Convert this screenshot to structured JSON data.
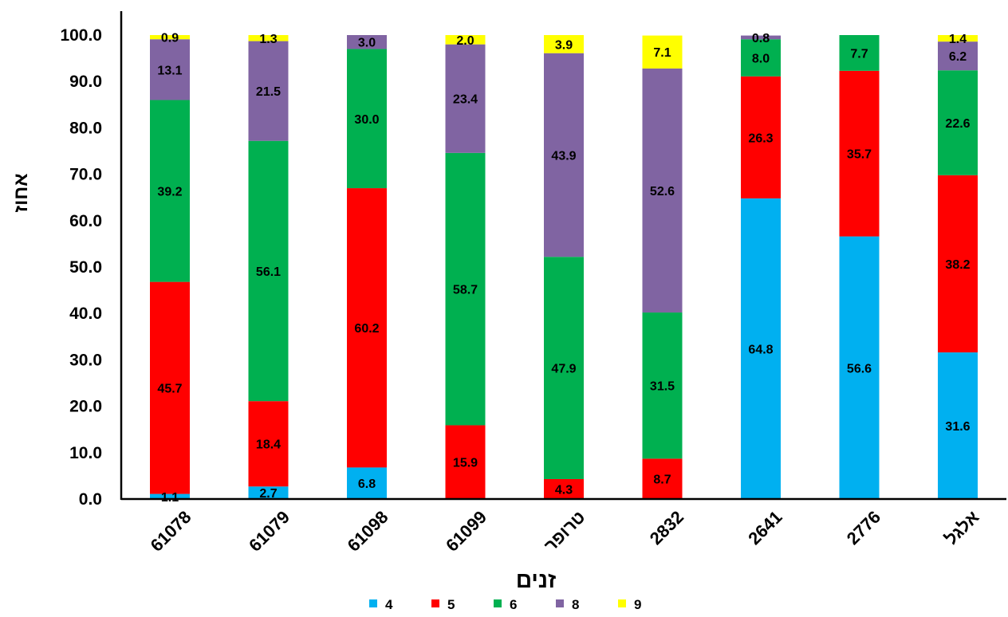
{
  "chart_data": {
    "type": "bar",
    "stacked": true,
    "title": "",
    "xlabel": "זנים",
    "ylabel": "אחוז",
    "ylim": [
      0,
      100
    ],
    "yticks": [
      "0.0",
      "10.0",
      "20.0",
      "30.0",
      "40.0",
      "50.0",
      "60.0",
      "70.0",
      "80.0",
      "90.0",
      "100.0"
    ],
    "grid": false,
    "legend_position": "bottom",
    "categories": [
      "61078",
      "61079",
      "61098",
      "61099",
      "טרופר",
      "2832",
      "2641",
      "2776",
      "אלגל"
    ],
    "series": [
      {
        "name": "4",
        "color": "#00B0F0",
        "values": [
          1.1,
          2.7,
          6.8,
          0,
          0,
          0,
          64.8,
          56.6,
          31.6
        ],
        "labels": [
          "1.1",
          "2.7",
          "6.8",
          "",
          "",
          "",
          "64.8",
          "56.6",
          "31.6"
        ]
      },
      {
        "name": "5",
        "color": "#FF0000",
        "values": [
          45.7,
          18.4,
          60.2,
          15.9,
          4.3,
          8.7,
          26.3,
          35.7,
          38.2
        ],
        "labels": [
          "45.7",
          "18.4",
          "60.2",
          "15.9",
          "4.3",
          "8.7",
          "26.3",
          "35.7",
          "38.2"
        ]
      },
      {
        "name": "6",
        "color": "#00B050",
        "values": [
          39.2,
          56.1,
          30.0,
          58.7,
          47.9,
          31.5,
          8.0,
          7.7,
          22.6
        ],
        "labels": [
          "39.2",
          "56.1",
          "30.0",
          "58.7",
          "47.9",
          "31.5",
          "8.0",
          "7.7",
          "22.6"
        ]
      },
      {
        "name": "8",
        "color": "#8064A2",
        "values": [
          13.1,
          21.5,
          3.0,
          23.4,
          43.9,
          52.6,
          0.8,
          0,
          6.2
        ],
        "labels": [
          "13.1",
          "21.5",
          "3.0",
          "23.4",
          "43.9",
          "52.6",
          "0.8",
          "",
          "6.2"
        ]
      },
      {
        "name": "9",
        "color": "#FFFF00",
        "values": [
          0.9,
          1.3,
          0,
          2.0,
          3.9,
          7.1,
          0,
          0,
          1.4
        ],
        "labels": [
          "0.9",
          "1.3",
          "",
          "2.0",
          "3.9",
          "7.1",
          "",
          "",
          "1.4"
        ]
      }
    ]
  }
}
